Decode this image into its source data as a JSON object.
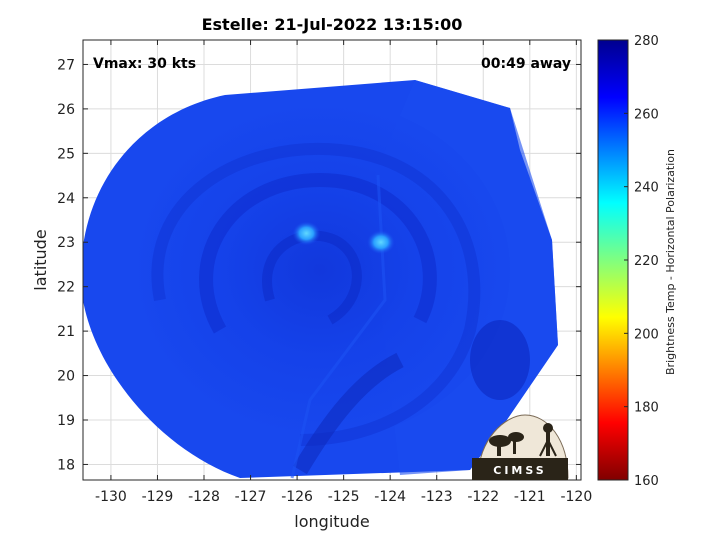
{
  "chart_data": {
    "type": "heatmap",
    "title": "Estelle: 21-Jul-2022 13:15:00",
    "xlabel": "longitude",
    "ylabel": "latitude",
    "xlim": [
      -130.6,
      -119.9
    ],
    "ylim": [
      17.65,
      27.55
    ],
    "xticks": [
      -130,
      -129,
      -128,
      -127,
      -126,
      -125,
      -124,
      -123,
      -122,
      -121,
      -120
    ],
    "yticks": [
      18,
      19,
      20,
      21,
      22,
      23,
      24,
      25,
      26,
      27
    ],
    "grid": true,
    "annotations": {
      "top_left": "Vmax: 30 kts",
      "top_right": "00:49 away"
    },
    "colorbar": {
      "label": "Brightness Temp - Horizontal Polarization",
      "min": 160,
      "max": 280,
      "ticks": [
        160,
        180,
        200,
        220,
        240,
        260,
        280
      ]
    },
    "storm_center": {
      "lon": -125.3,
      "lat": 22.4
    },
    "bright_spots": [
      {
        "lon": -125.8,
        "lat": 23.2,
        "value": 248
      },
      {
        "lon": -124.2,
        "lat": 23.0,
        "value": 245
      }
    ],
    "background_value": 263
  },
  "logo": {
    "text": "CIMSS"
  }
}
